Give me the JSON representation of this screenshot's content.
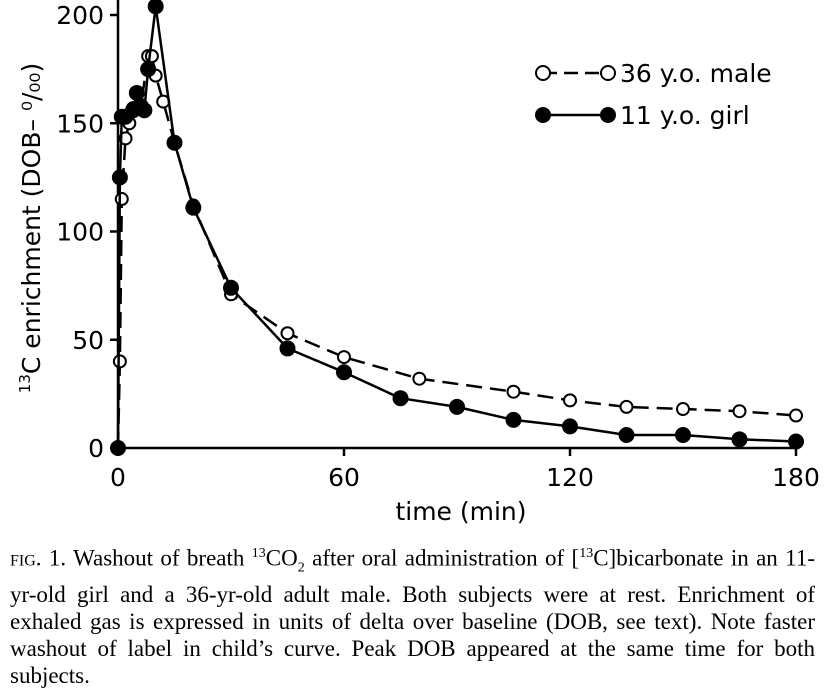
{
  "chart_data": {
    "type": "line",
    "ylabel_prefix": "13",
    "ylabel": "C enrichment (DOB– ⁰/₀₀)",
    "xlabel": "time (min)",
    "xlim": [
      0,
      180
    ],
    "ylim": [
      0,
      200
    ],
    "xticks": [
      "0",
      "60",
      "120",
      "180"
    ],
    "yticks": [
      "0",
      "50",
      "100",
      "150",
      "200"
    ],
    "grid": false,
    "legend_position": "top-right",
    "series": [
      {
        "name": "36 y.o. male",
        "marker": "open-circle",
        "line": "dashed",
        "x": [
          0,
          0.5,
          1,
          2,
          3,
          4,
          6,
          8,
          9,
          10,
          12,
          15,
          20,
          30,
          45,
          60,
          80,
          105,
          120,
          135,
          150,
          165,
          180
        ],
        "y": [
          0,
          40,
          115,
          143,
          150,
          157,
          157,
          181,
          181,
          172,
          160,
          141,
          112,
          71,
          53,
          42,
          32,
          26,
          22,
          19,
          18,
          17,
          15
        ]
      },
      {
        "name": "11 y.o. girl",
        "marker": "filled-circle",
        "line": "solid",
        "x": [
          0,
          0.5,
          1,
          2,
          4,
          5,
          6,
          7,
          8,
          10,
          15,
          20,
          30,
          45,
          60,
          75,
          90,
          105,
          120,
          135,
          150,
          165,
          180
        ],
        "y": [
          0,
          125,
          153,
          153,
          156,
          164,
          158,
          156,
          175,
          204,
          141,
          111,
          74,
          46,
          35,
          23,
          19,
          13,
          10,
          6,
          6,
          4,
          3
        ]
      }
    ]
  },
  "caption": {
    "lead": "fig. 1.",
    "text_1": " Washout of breath ",
    "sup_1": "13",
    "text_2": "CO",
    "sub_1": "2",
    "text_3": " after oral administration of [",
    "sup_2": "13",
    "text_4": "C]bicarbonate in an 11-yr-old girl and a 36-yr-old adult male. Both subjects were at rest. Enrichment of exhaled gas is expressed in units of delta over baseline (DOB, see text). Note faster washout of label in child’s curve. Peak DOB appeared at the same time for both subjects."
  }
}
